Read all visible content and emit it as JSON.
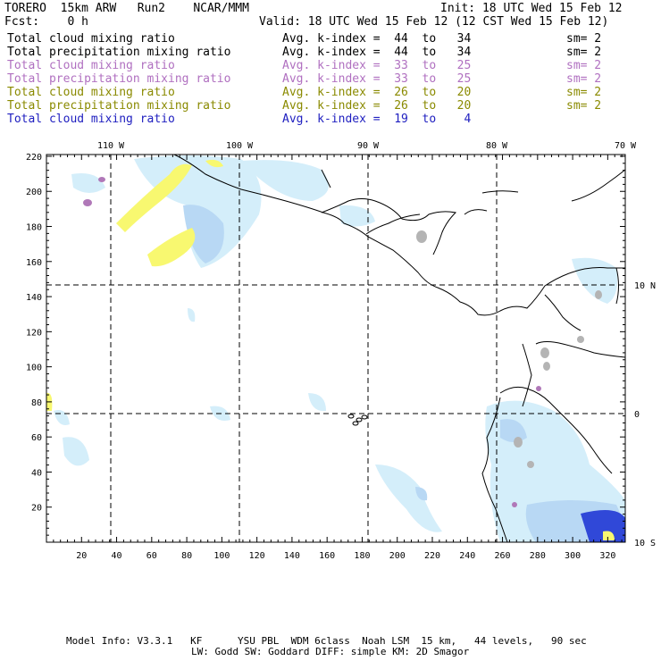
{
  "header": {
    "model": "TORERO  15km ARW   Run2    NCAR/MMM",
    "init": "Init: 18 UTC Wed 15 Feb 12",
    "fcst": "Fcst:    0 h",
    "valid": "Valid: 18 UTC Wed 15 Feb 12 (12 CST Wed 15 Feb 12)"
  },
  "legend": [
    {
      "field": "Total cloud mixing ratio",
      "kindex": "Avg. k-index =  44  to   34",
      "sm": "sm= 2",
      "color": "#000000"
    },
    {
      "field": "Total precipitation mixing ratio",
      "kindex": "Avg. k-index =  44  to   34",
      "sm": "sm= 2",
      "color": "#000000"
    },
    {
      "field": "Total cloud mixing ratio",
      "kindex": "Avg. k-index =  33  to   25",
      "sm": "sm= 2",
      "color": "#b070c0"
    },
    {
      "field": "Total precipitation mixing ratio",
      "kindex": "Avg. k-index =  33  to   25",
      "sm": "sm= 2",
      "color": "#b070c0"
    },
    {
      "field": "Total cloud mixing ratio",
      "kindex": "Avg. k-index =  26  to   20",
      "sm": "sm= 2",
      "color": "#8a8a00"
    },
    {
      "field": "Total precipitation mixing ratio",
      "kindex": "Avg. k-index =  26  to   20",
      "sm": "sm= 2",
      "color": "#8a8a00"
    },
    {
      "field": "Total cloud mixing ratio",
      "kindex": "Avg. k-index =  19  to    4",
      "sm": "",
      "color": "#2020c0"
    }
  ],
  "axes": {
    "top_labels": [
      "110 W",
      "100 W",
      "90 W",
      "80 W",
      "70 W"
    ],
    "right_labels": [
      "10 N",
      "0",
      "10 S"
    ],
    "left_ticks": [
      "220",
      "200",
      "180",
      "160",
      "140",
      "120",
      "100",
      "80",
      "60",
      "40",
      "20"
    ],
    "bottom_ticks": [
      "20",
      "40",
      "60",
      "80",
      "100",
      "120",
      "140",
      "160",
      "180",
      "200",
      "220",
      "240",
      "260",
      "280",
      "300",
      "320"
    ]
  },
  "footer": {
    "line1": "Model Info: V3.3.1   KF      YSU PBL  WDM 6class  Noah LSM  15 km,   44 levels,   90 sec",
    "line2": "LW: Godd SW: Goddard DIFF: simple KM: 2D Smagor"
  }
}
